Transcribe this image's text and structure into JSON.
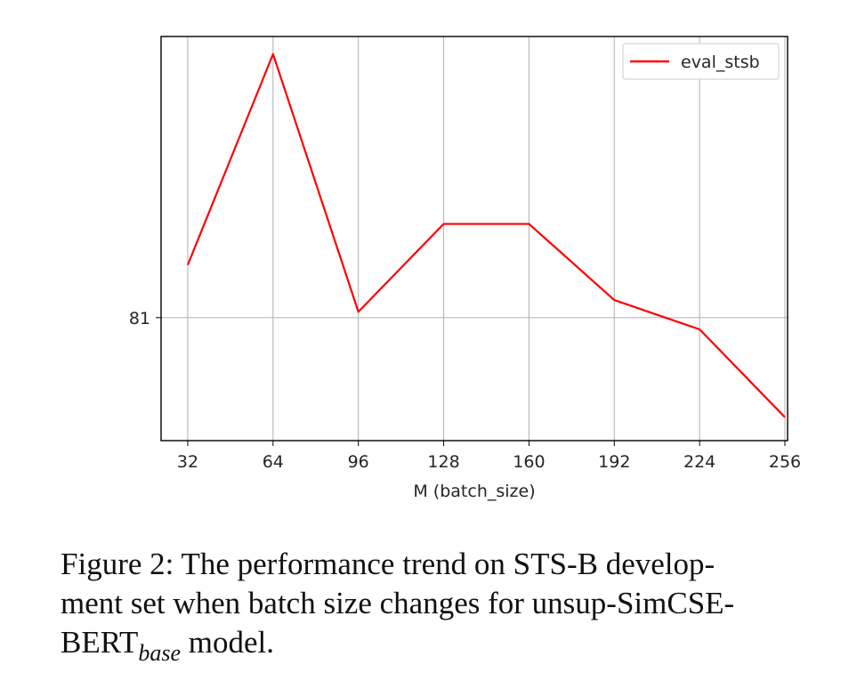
{
  "chart_data": {
    "type": "line",
    "xlabel": "M (batch_size)",
    "ylabel": "",
    "x": [
      32,
      64,
      96,
      128,
      160,
      192,
      224,
      256
    ],
    "xtick_labels": [
      "32",
      "64",
      "96",
      "128",
      "160",
      "192",
      "224",
      "256"
    ],
    "ytick_labels": [
      "81"
    ],
    "ytick_values": [
      81
    ],
    "series": [
      {
        "name": "eval_stsb",
        "color": "#ff0000",
        "values": [
          81.09,
          81.45,
          81.01,
          81.16,
          81.16,
          81.03,
          80.98,
          80.83
        ]
      }
    ],
    "ylim": [
      80.79,
      81.48
    ],
    "xlim": [
      22,
      257
    ],
    "grid": true,
    "legend_position": "top-right"
  },
  "caption": {
    "line1": "Figure 2: The performance trend on STS-B develop-",
    "line2": "ment set when batch size changes for unsup-SimCSE-",
    "line3_prefix": "BERT",
    "line3_subscript": "base",
    "line3_suffix": " model."
  }
}
